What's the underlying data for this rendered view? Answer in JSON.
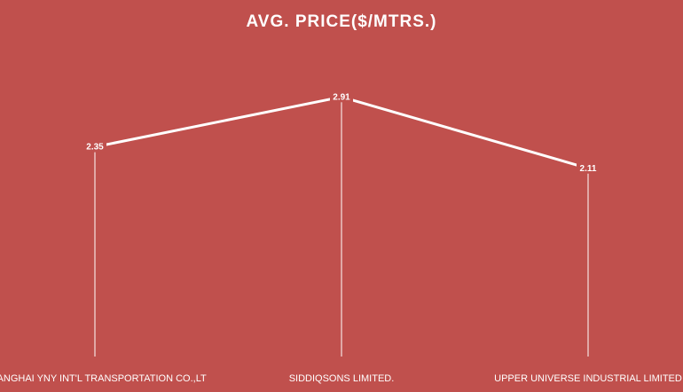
{
  "colors": {
    "background": "#c0504d",
    "line": "#ffffff",
    "text": "#ffffff",
    "label_box": "#c0504d"
  },
  "chart_data": {
    "type": "line",
    "title": "AVG. PRICE($/MTRS.)",
    "categories": [
      "SHANGHAI YNY INT'L TRANSPORTATION CO.,LT",
      "SIDDIQSONS LIMITED.",
      "UPPER UNIVERSE INDUSTRIAL LIMITED"
    ],
    "series": [
      {
        "values": [
          2.35,
          2.91,
          2.11
        ]
      }
    ],
    "data_labels": [
      "2.35",
      "2.91",
      "2.11"
    ],
    "ylim": [
      0,
      3.4
    ],
    "grid": false,
    "drop_lines": true,
    "legend": "none"
  }
}
